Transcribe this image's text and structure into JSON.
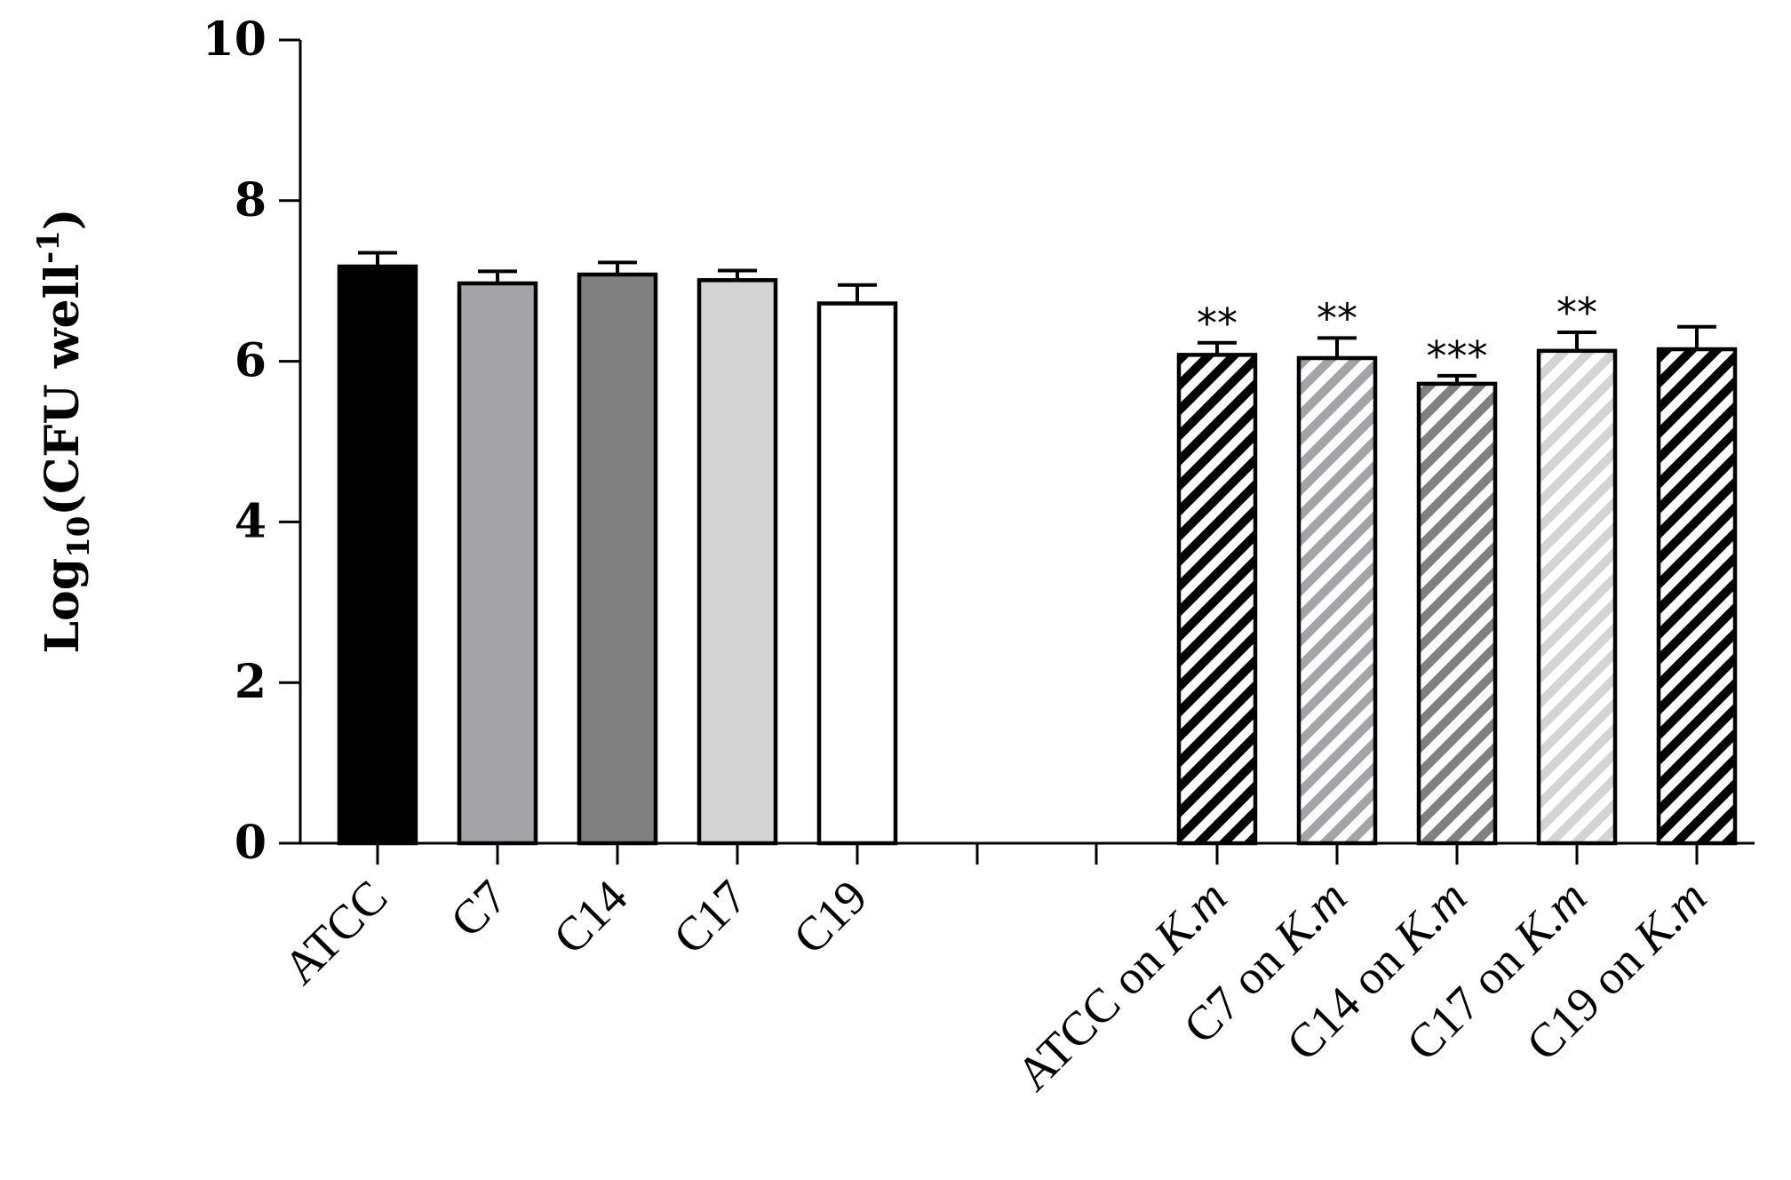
{
  "chart_data": {
    "type": "bar",
    "title": "",
    "xlabel": "",
    "ylabel": {
      "base": "Log",
      "subscript": "10",
      "open": "(CFU well",
      "superscript": "-1",
      "close": ")"
    },
    "ylim": [
      0,
      10
    ],
    "yticks": [
      "0",
      "2",
      "4",
      "6",
      "8",
      "10"
    ],
    "grid": false,
    "legend": "none",
    "categories": [
      {
        "prefix": "ATCC",
        "suffix": ""
      },
      {
        "prefix": "C7",
        "suffix": ""
      },
      {
        "prefix": "C14",
        "suffix": ""
      },
      {
        "prefix": "C17",
        "suffix": ""
      },
      {
        "prefix": "C19",
        "suffix": ""
      },
      {
        "prefix": "",
        "suffix": ""
      },
      {
        "prefix": "",
        "suffix": ""
      },
      {
        "prefix": "ATCC on ",
        "suffix": "K.m"
      },
      {
        "prefix": "C7 on ",
        "suffix": "K.m"
      },
      {
        "prefix": "C14 on ",
        "suffix": "K.m"
      },
      {
        "prefix": "C17 on ",
        "suffix": "K.m"
      },
      {
        "prefix": "C19 on ",
        "suffix": "K.m"
      }
    ],
    "values": [
      7.18,
      6.97,
      7.08,
      7.01,
      6.72,
      null,
      null,
      6.08,
      6.04,
      5.72,
      6.13,
      6.15
    ],
    "errors": [
      0.17,
      0.15,
      0.15,
      0.12,
      0.23,
      null,
      null,
      0.15,
      0.25,
      0.1,
      0.23,
      0.28
    ],
    "significance": [
      "",
      "",
      "",
      "",
      "",
      "",
      "",
      "**",
      "**",
      "***",
      "**",
      ""
    ],
    "bar_colors": [
      "#000000",
      "#a3a3a8",
      "#808080",
      "#d4d4d4",
      "#ffffff",
      null,
      null,
      "#000000",
      "#a3a3a8",
      "#808080",
      "#d4d4d4",
      "#000000"
    ],
    "hatched": [
      false,
      false,
      false,
      false,
      false,
      false,
      false,
      true,
      true,
      true,
      true,
      true
    ]
  }
}
